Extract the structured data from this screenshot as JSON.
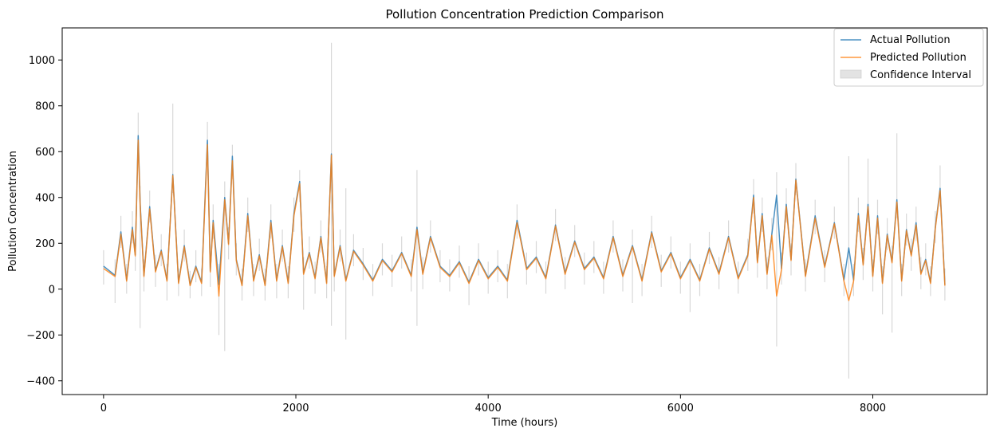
{
  "chart_data": {
    "type": "line",
    "title": "Pollution Concentration Prediction Comparison",
    "xlabel": "Time (hours)",
    "ylabel": "Pollution Concentration",
    "xlim": [
      -430,
      9190
    ],
    "ylim": [
      -460,
      1140
    ],
    "xticks": [
      0,
      2000,
      4000,
      6000,
      8000
    ],
    "yticks": [
      -400,
      -200,
      0,
      200,
      400,
      600,
      800,
      1000
    ],
    "grid": false,
    "legend_position": "top-right",
    "colors": {
      "actual": "#1f77b4",
      "predicted": "#ff7f0e",
      "band": "#c8c8c8"
    },
    "series": [
      {
        "name": "Actual Pollution",
        "x": [
          0,
          120,
          180,
          240,
          300,
          330,
          360,
          380,
          420,
          480,
          540,
          600,
          660,
          720,
          780,
          840,
          900,
          960,
          1020,
          1080,
          1110,
          1140,
          1200,
          1260,
          1300,
          1340,
          1380,
          1440,
          1500,
          1560,
          1620,
          1680,
          1740,
          1800,
          1860,
          1920,
          1980,
          2040,
          2080,
          2140,
          2200,
          2260,
          2320,
          2370,
          2400,
          2460,
          2520,
          2600,
          2700,
          2800,
          2900,
          3000,
          3100,
          3200,
          3260,
          3320,
          3400,
          3500,
          3600,
          3700,
          3800,
          3900,
          4000,
          4100,
          4200,
          4300,
          4400,
          4500,
          4600,
          4700,
          4800,
          4900,
          5000,
          5100,
          5200,
          5300,
          5400,
          5500,
          5600,
          5700,
          5800,
          5900,
          6000,
          6100,
          6200,
          6300,
          6400,
          6500,
          6600,
          6700,
          6760,
          6800,
          6850,
          6900,
          6950,
          7000,
          7050,
          7100,
          7150,
          7200,
          7300,
          7400,
          7500,
          7600,
          7700,
          7750,
          7800,
          7850,
          7900,
          7950,
          8000,
          8050,
          8100,
          8150,
          8200,
          8250,
          8300,
          8350,
          8400,
          8450,
          8500,
          8550,
          8600,
          8650,
          8700,
          8750
        ],
        "values": [
          100,
          60,
          250,
          40,
          270,
          150,
          670,
          380,
          60,
          360,
          80,
          170,
          40,
          500,
          30,
          190,
          20,
          100,
          30,
          650,
          80,
          300,
          20,
          400,
          200,
          580,
          130,
          20,
          330,
          40,
          150,
          20,
          300,
          40,
          190,
          30,
          330,
          470,
          70,
          160,
          50,
          230,
          30,
          590,
          60,
          190,
          40,
          170,
          110,
          40,
          130,
          80,
          160,
          60,
          270,
          70,
          230,
          100,
          60,
          120,
          30,
          130,
          50,
          100,
          40,
          300,
          90,
          140,
          50,
          280,
          70,
          210,
          90,
          140,
          50,
          230,
          60,
          190,
          40,
          250,
          80,
          160,
          50,
          130,
          40,
          180,
          70,
          230,
          50,
          150,
          410,
          120,
          330,
          70,
          240,
          410,
          90,
          370,
          130,
          480,
          60,
          320,
          100,
          290,
          40,
          180,
          40,
          330,
          110,
          370,
          60,
          320,
          30,
          240,
          120,
          390,
          40,
          260,
          150,
          290,
          70,
          130,
          30,
          270,
          440,
          20
        ]
      },
      {
        "name": "Predicted Pollution",
        "x": [
          0,
          120,
          180,
          240,
          300,
          330,
          360,
          380,
          420,
          480,
          540,
          600,
          660,
          720,
          780,
          840,
          900,
          960,
          1020,
          1080,
          1110,
          1140,
          1200,
          1260,
          1300,
          1340,
          1380,
          1440,
          1500,
          1560,
          1620,
          1680,
          1740,
          1800,
          1860,
          1920,
          1980,
          2040,
          2080,
          2140,
          2200,
          2260,
          2320,
          2370,
          2400,
          2460,
          2520,
          2600,
          2700,
          2800,
          2900,
          3000,
          3100,
          3200,
          3260,
          3320,
          3400,
          3500,
          3600,
          3700,
          3800,
          3900,
          4000,
          4100,
          4200,
          4300,
          4400,
          4500,
          4600,
          4700,
          4800,
          4900,
          5000,
          5100,
          5200,
          5300,
          5400,
          5500,
          5600,
          5700,
          5800,
          5900,
          6000,
          6100,
          6200,
          6300,
          6400,
          6500,
          6600,
          6700,
          6760,
          6800,
          6850,
          6900,
          6950,
          7000,
          7050,
          7100,
          7150,
          7200,
          7300,
          7400,
          7500,
          7600,
          7700,
          7750,
          7800,
          7850,
          7900,
          7950,
          8000,
          8050,
          8100,
          8150,
          8200,
          8250,
          8300,
          8350,
          8400,
          8450,
          8500,
          8550,
          8600,
          8650,
          8700,
          8750
        ],
        "values": [
          90,
          55,
          240,
          35,
          260,
          145,
          650,
          370,
          55,
          350,
          75,
          165,
          35,
          495,
          25,
          185,
          15,
          95,
          25,
          630,
          75,
          290,
          -30,
          390,
          195,
          560,
          125,
          15,
          320,
          35,
          145,
          15,
          290,
          35,
          185,
          25,
          320,
          460,
          65,
          155,
          45,
          225,
          25,
          585,
          55,
          185,
          35,
          165,
          105,
          35,
          125,
          75,
          155,
          55,
          260,
          65,
          225,
          95,
          55,
          115,
          25,
          125,
          45,
          95,
          35,
          290,
          85,
          135,
          45,
          275,
          65,
          205,
          85,
          135,
          45,
          225,
          55,
          185,
          35,
          245,
          75,
          155,
          45,
          125,
          35,
          175,
          65,
          225,
          45,
          145,
          400,
          115,
          320,
          65,
          235,
          -30,
          85,
          360,
          125,
          475,
          55,
          310,
          95,
          285,
          35,
          -50,
          35,
          320,
          105,
          360,
          55,
          310,
          25,
          235,
          115,
          380,
          35,
          255,
          145,
          280,
          65,
          125,
          25,
          265,
          430,
          15
        ]
      },
      {
        "name": "Confidence Interval",
        "x": [
          0,
          120,
          180,
          240,
          300,
          330,
          360,
          380,
          420,
          480,
          540,
          600,
          660,
          720,
          780,
          840,
          900,
          960,
          1020,
          1080,
          1110,
          1140,
          1200,
          1260,
          1300,
          1340,
          1380,
          1440,
          1500,
          1560,
          1620,
          1680,
          1740,
          1800,
          1860,
          1920,
          1980,
          2040,
          2080,
          2140,
          2200,
          2260,
          2320,
          2370,
          2400,
          2460,
          2520,
          2600,
          2700,
          2800,
          2900,
          3000,
          3100,
          3200,
          3260,
          3320,
          3400,
          3500,
          3600,
          3700,
          3800,
          3900,
          4000,
          4100,
          4200,
          4300,
          4400,
          4500,
          4600,
          4700,
          4800,
          4900,
          5000,
          5100,
          5200,
          5300,
          5400,
          5500,
          5600,
          5700,
          5800,
          5900,
          6000,
          6100,
          6200,
          6300,
          6400,
          6500,
          6600,
          6700,
          6760,
          6800,
          6850,
          6900,
          6950,
          7000,
          7050,
          7100,
          7150,
          7200,
          7300,
          7400,
          7500,
          7600,
          7700,
          7750,
          7800,
          7850,
          7900,
          7950,
          8000,
          8050,
          8100,
          8150,
          8200,
          8250,
          8300,
          8350,
          8400,
          8450,
          8500,
          8550,
          8600,
          8650,
          8700,
          8750
        ],
        "lower": [
          20,
          -60,
          180,
          -20,
          200,
          80,
          560,
          -170,
          -10,
          290,
          10,
          100,
          -50,
          420,
          -30,
          120,
          -40,
          30,
          -30,
          560,
          10,
          220,
          -200,
          -270,
          130,
          480,
          60,
          -50,
          250,
          -30,
          80,
          -50,
          220,
          -40,
          120,
          -40,
          250,
          380,
          -90,
          90,
          -20,
          160,
          -40,
          -160,
          -10,
          120,
          -220,
          100,
          40,
          -30,
          60,
          10,
          90,
          -10,
          -160,
          0,
          160,
          30,
          -10,
          50,
          -70,
          60,
          -20,
          30,
          -40,
          220,
          20,
          70,
          -20,
          210,
          0,
          140,
          20,
          70,
          -20,
          160,
          -10,
          -60,
          -30,
          180,
          10,
          90,
          -20,
          -100,
          -30,
          110,
          0,
          160,
          -20,
          80,
          330,
          50,
          250,
          0,
          170,
          -250,
          20,
          290,
          60,
          410,
          -10,
          240,
          30,
          220,
          -30,
          -390,
          -30,
          250,
          40,
          290,
          -10,
          240,
          -110,
          170,
          -190,
          310,
          -30,
          190,
          80,
          210,
          0,
          60,
          -30,
          200,
          360,
          -50
        ],
        "upper": [
          170,
          130,
          320,
          110,
          340,
          220,
          770,
          450,
          130,
          430,
          150,
          240,
          110,
          810,
          90,
          260,
          80,
          170,
          90,
          730,
          150,
          370,
          110,
          470,
          270,
          630,
          200,
          90,
          400,
          110,
          220,
          90,
          370,
          110,
          260,
          100,
          400,
          520,
          140,
          230,
          120,
          300,
          100,
          1075,
          130,
          260,
          440,
          240,
          180,
          110,
          200,
          150,
          230,
          130,
          520,
          140,
          300,
          170,
          130,
          190,
          100,
          200,
          120,
          170,
          110,
          370,
          160,
          210,
          120,
          350,
          140,
          280,
          160,
          210,
          120,
          300,
          130,
          260,
          110,
          320,
          150,
          230,
          120,
          200,
          110,
          250,
          140,
          300,
          120,
          220,
          480,
          190,
          400,
          140,
          310,
          510,
          160,
          440,
          200,
          550,
          130,
          390,
          170,
          360,
          110,
          580,
          110,
          400,
          180,
          570,
          130,
          390,
          100,
          310,
          190,
          680,
          110,
          330,
          220,
          360,
          140,
          200,
          100,
          340,
          540,
          90
        ]
      }
    ]
  }
}
